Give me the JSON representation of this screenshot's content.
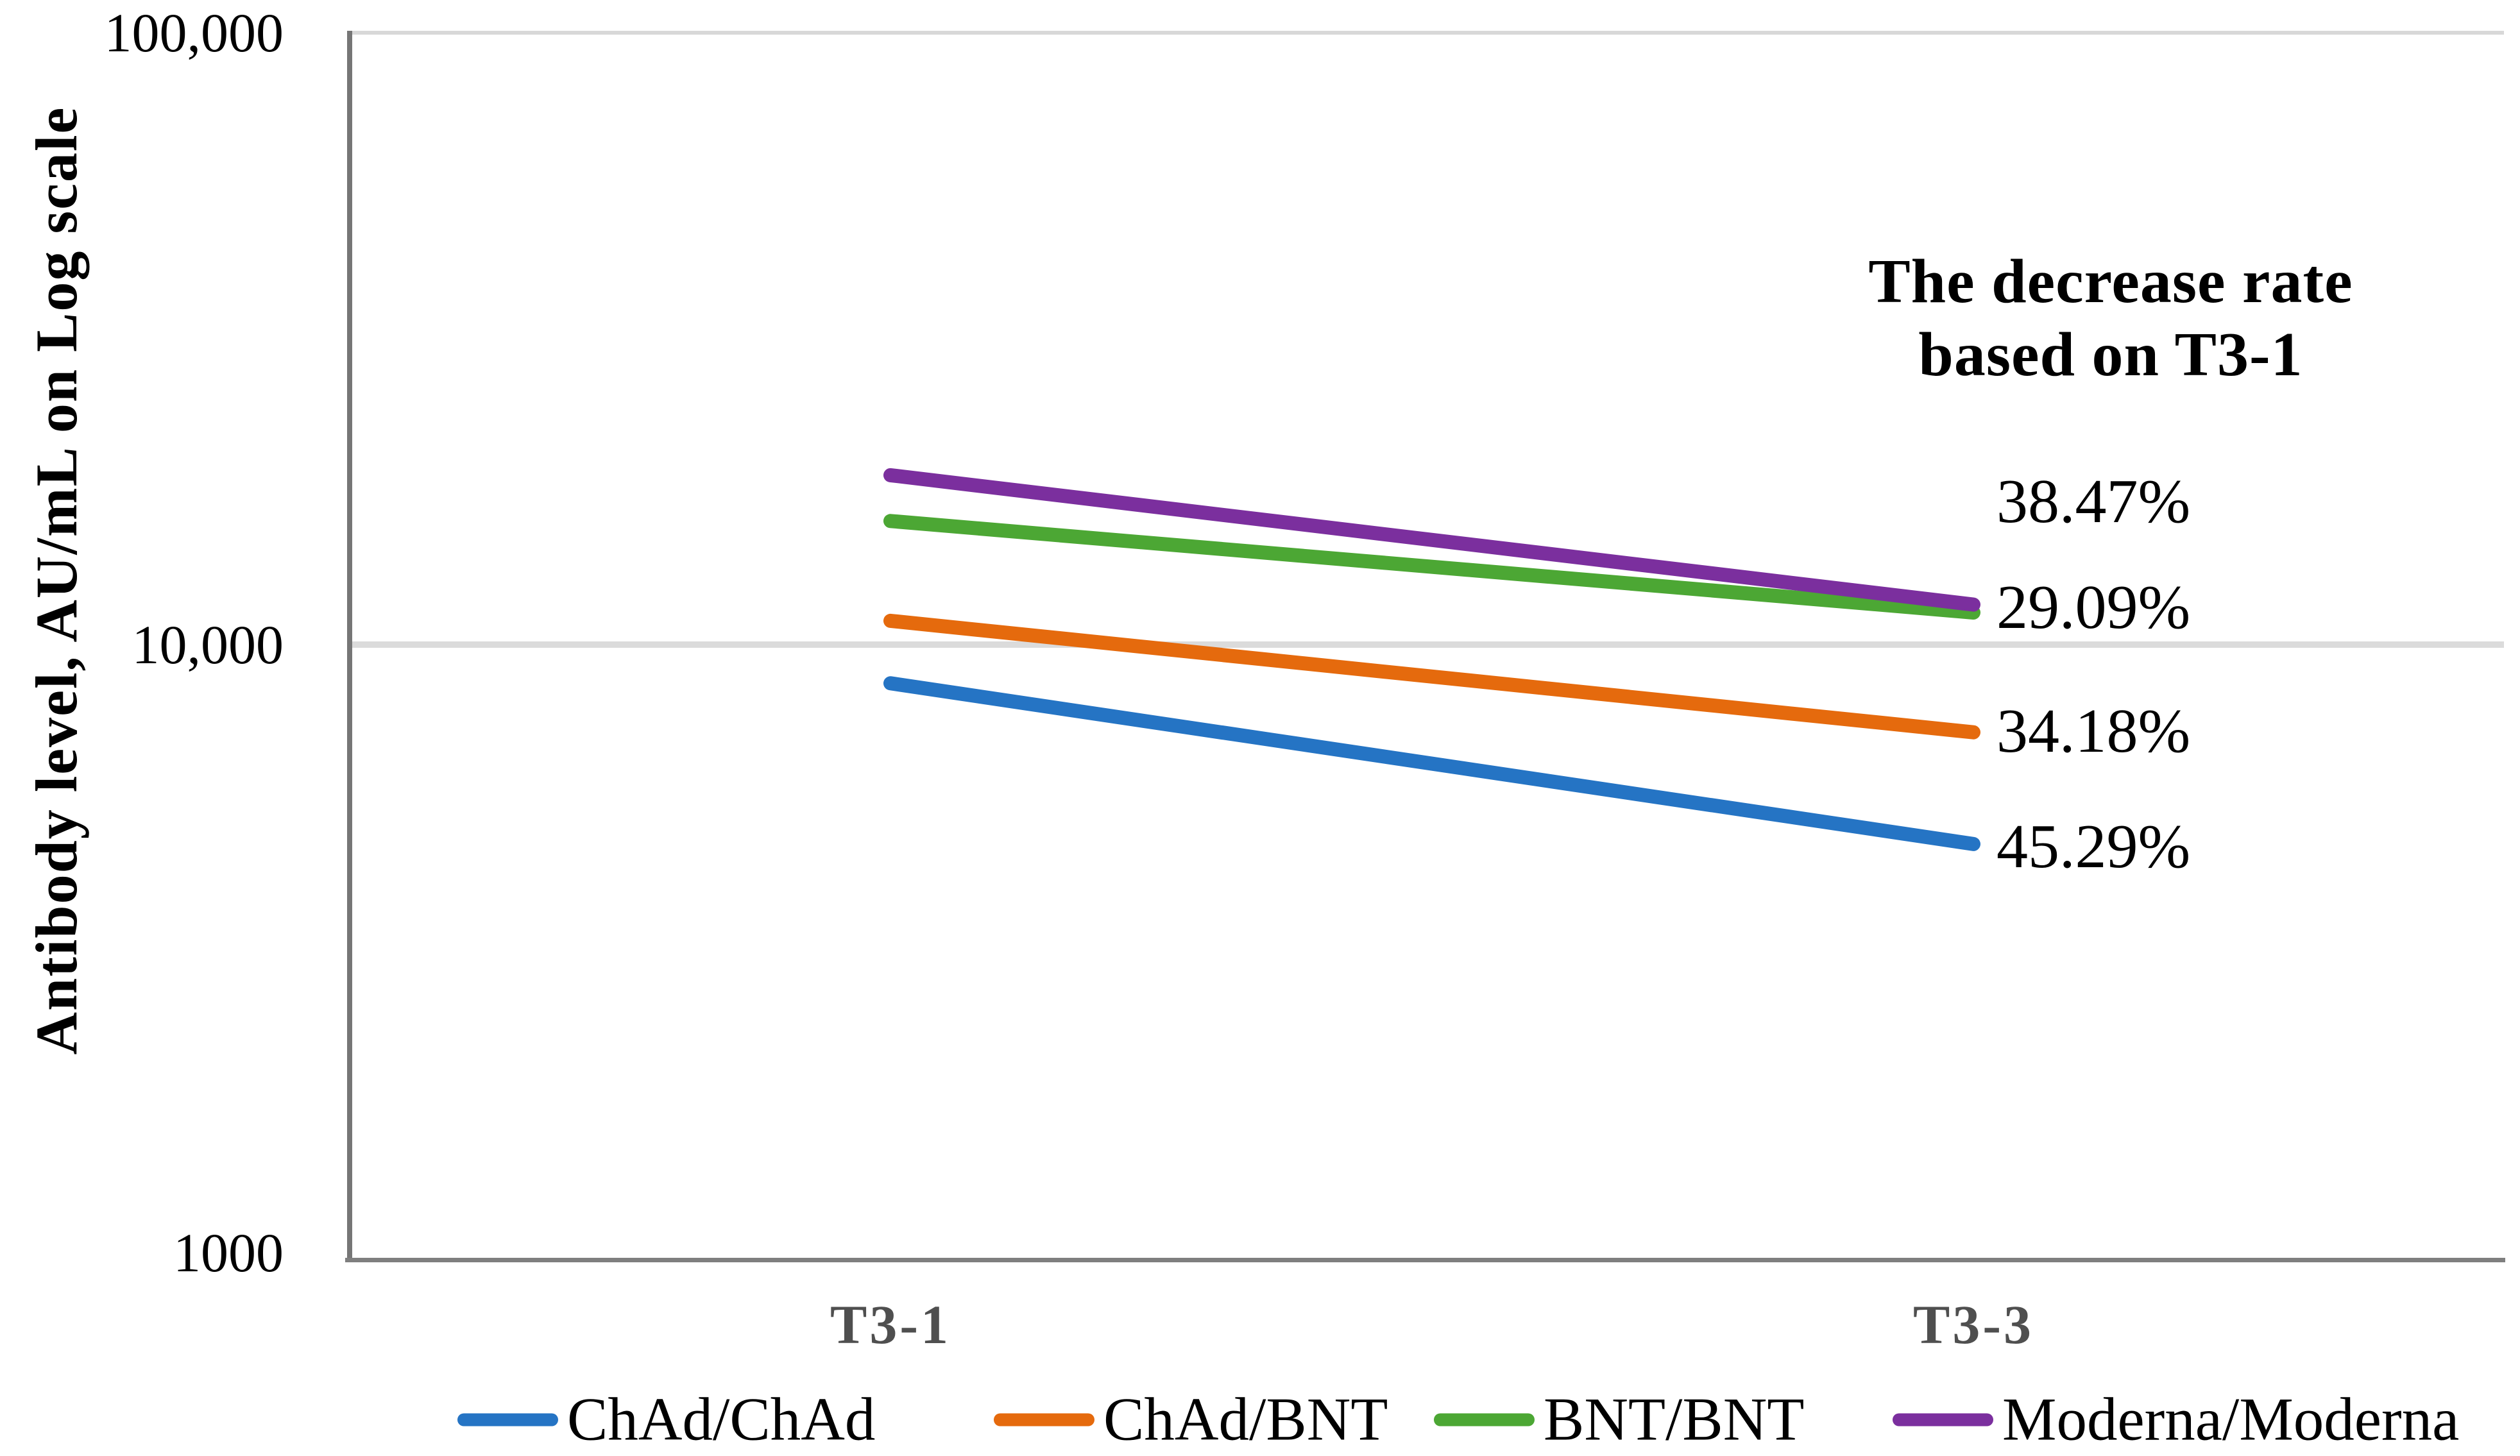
{
  "y_axis": {
    "title": "Antibody level, AU/mL on Log scale",
    "ticks": [
      "100,000",
      "10,000",
      "1000"
    ],
    "scale": "log",
    "min": 1000,
    "max": 100000
  },
  "x_axis": {
    "categories": [
      "T3-1",
      "T3-3"
    ]
  },
  "annotation": {
    "line1": "The decrease rate",
    "line2": "based on T3-1"
  },
  "chart_data": {
    "type": "line",
    "title": "",
    "xlabel": "",
    "ylabel": "Antibody level, AU/mL on Log scale",
    "yscale": "log",
    "ylim": [
      1000,
      100000
    ],
    "grid_values": [
      10000
    ],
    "categories": [
      "T3-1",
      "T3-3"
    ],
    "annotation": "The decrease rate based on T3-1",
    "legend_position": "bottom",
    "series": [
      {
        "name": "ChAd/ChAd",
        "color": "#2574c4",
        "values": [
          8700,
          4760
        ],
        "decrease_rate": "45.29%"
      },
      {
        "name": "ChAd/BNT",
        "color": "#e56a0d",
        "values": [
          11000,
          7240
        ],
        "decrease_rate": "34.18%"
      },
      {
        "name": "BNT/BNT",
        "color": "#4ca734",
        "values": [
          16000,
          11346
        ],
        "decrease_rate": "29.09%"
      },
      {
        "name": "Moderna/Moderna",
        "color": "#7b2f9e",
        "values": [
          19000,
          11690
        ],
        "decrease_rate": "38.47%"
      }
    ]
  }
}
